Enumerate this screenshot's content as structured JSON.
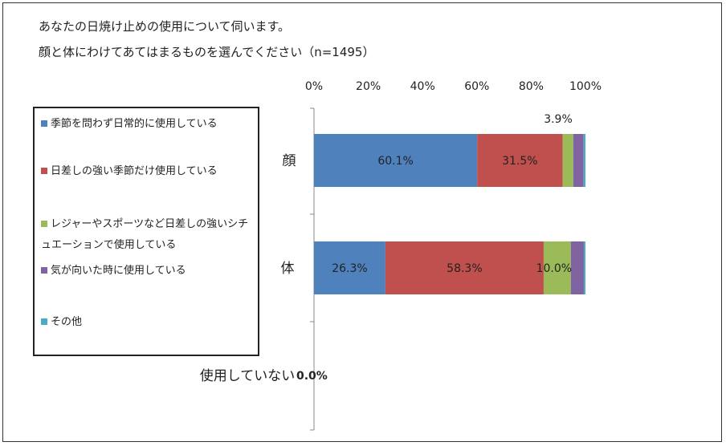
{
  "question": {
    "line1": "あなたの日焼け止めの使用について伺います。",
    "line2": "顔と体にわけてあてはまるものを選んでください（n=1495）"
  },
  "chart_data": {
    "type": "bar",
    "orientation": "horizontal",
    "stacked": true,
    "percent_stacked": true,
    "categories": [
      "顔",
      "体",
      "使用していない"
    ],
    "series": [
      {
        "name": "季節を問わず日常的に使用している",
        "color": "#4f81bd",
        "values": [
          60.1,
          26.3,
          0.0
        ]
      },
      {
        "name": "日差しの強い季節だけ使用している",
        "color": "#c0504d",
        "values": [
          31.5,
          58.3,
          0.0
        ]
      },
      {
        "name": "レジャーやスポーツなど日差しの強いシチュエーションで使用している",
        "color": "#9bbb59",
        "values": [
          3.9,
          10.0,
          0.0
        ]
      },
      {
        "name": "気が向いた時に使用している",
        "color": "#8064a2",
        "values": [
          3.8,
          4.8,
          0.0
        ]
      },
      {
        "name": "その他",
        "color": "#4bacc6",
        "values": [
          0.7,
          0.6,
          0.0
        ]
      }
    ],
    "x_ticks": [
      "0%",
      "20%",
      "40%",
      "60%",
      "80%",
      "100%"
    ],
    "xlim": [
      0,
      100
    ],
    "legend_position": "left",
    "data_labels": [
      {
        "category": "顔",
        "series": 0,
        "text": "60.1%"
      },
      {
        "category": "顔",
        "series": 1,
        "text": "31.5%"
      },
      {
        "category": "顔",
        "series": 2,
        "text": "3.9%",
        "placement": "above"
      },
      {
        "category": "体",
        "series": 0,
        "text": "26.3%"
      },
      {
        "category": "体",
        "series": 1,
        "text": "58.3%"
      },
      {
        "category": "体",
        "series": 2,
        "text": "10.0%"
      },
      {
        "category": "使用していない",
        "series": 0,
        "text": "0.0%"
      }
    ]
  }
}
